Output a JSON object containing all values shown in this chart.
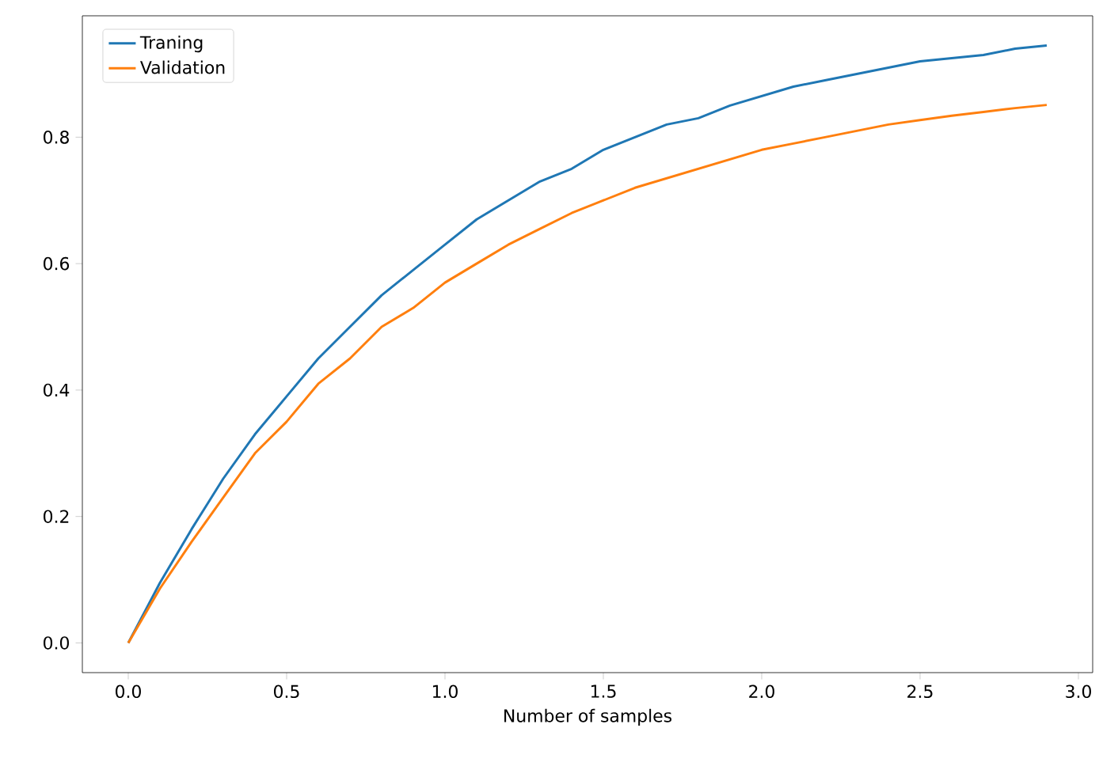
{
  "chart_data": {
    "type": "line",
    "xlabel": "Number of samples",
    "xlim": [
      -0.145,
      3.045
    ],
    "ylim": [
      -0.047,
      0.992
    ],
    "xticks": [
      {
        "value": 0,
        "label": "0.0"
      },
      {
        "value": 0.5,
        "label": "0.5"
      },
      {
        "value": 1,
        "label": "1.0"
      },
      {
        "value": 1.5,
        "label": "1.5"
      },
      {
        "value": 2,
        "label": "2.0"
      },
      {
        "value": 2.5,
        "label": "2.5"
      },
      {
        "value": 3,
        "label": "3.0"
      }
    ],
    "yticks": [
      {
        "value": 0,
        "label": "0.0"
      },
      {
        "value": 0.2,
        "label": "0.2"
      },
      {
        "value": 0.4,
        "label": "0.4"
      },
      {
        "value": 0.6,
        "label": "0.6"
      },
      {
        "value": 0.8,
        "label": "0.8"
      }
    ],
    "x": [
      0,
      0.1,
      0.2,
      0.3,
      0.4,
      0.5,
      0.6,
      0.7,
      0.8,
      0.9,
      1.0,
      1.1,
      1.2,
      1.3,
      1.4,
      1.5,
      1.6,
      1.7,
      1.8,
      1.9,
      2.0,
      2.1,
      2.2,
      2.3,
      2.4,
      2.5,
      2.6,
      2.7,
      2.8,
      2.9
    ],
    "series": [
      {
        "name": "Traning",
        "color": "#1f77b4",
        "values": [
          0,
          0.095,
          0.18,
          0.26,
          0.33,
          0.39,
          0.45,
          0.5,
          0.55,
          0.59,
          0.63,
          0.67,
          0.7,
          0.73,
          0.75,
          0.78,
          0.8,
          0.82,
          0.83,
          0.85,
          0.865,
          0.88,
          0.89,
          0.9,
          0.91,
          0.92,
          0.925,
          0.93,
          0.94,
          0.945
        ]
      },
      {
        "name": "Validation",
        "color": "#ff7f0e",
        "values": [
          0,
          0.086,
          0.16,
          0.23,
          0.3,
          0.35,
          0.41,
          0.45,
          0.5,
          0.53,
          0.57,
          0.6,
          0.63,
          0.655,
          0.68,
          0.7,
          0.72,
          0.735,
          0.75,
          0.765,
          0.78,
          0.79,
          0.8,
          0.81,
          0.82,
          0.827,
          0.834,
          0.84,
          0.846,
          0.851
        ]
      }
    ],
    "legend": "top left",
    "grid": false,
    "marker": "none",
    "line_style": "solid"
  }
}
